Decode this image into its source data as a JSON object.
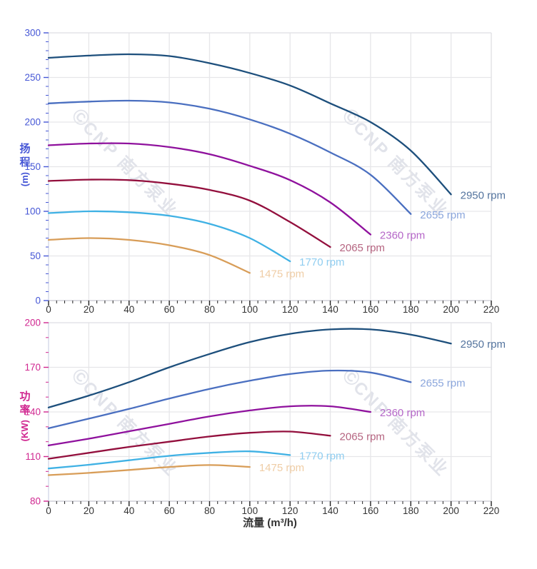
{
  "watermark": {
    "logo": "©",
    "text": "CNP 南方泵业"
  },
  "axes": {
    "head": {
      "title": "扬程",
      "unit": "(m)",
      "color": "#4657d6"
    },
    "power": {
      "title": "功率",
      "unit": "(KW)",
      "color": "#d02790"
    },
    "flow": {
      "title": "流量 (m³/h)",
      "color": "#333333"
    }
  },
  "chart_data": [
    {
      "type": "line",
      "name": "head-vs-flow",
      "title": "",
      "xlabel": "流量 (m³/h)",
      "ylabel": "扬程 (m)",
      "xlim": [
        0,
        220
      ],
      "ylim": [
        0,
        300
      ],
      "x_ticks": [
        0,
        20,
        40,
        60,
        80,
        100,
        120,
        140,
        160,
        180,
        200,
        220
      ],
      "y_ticks": [
        0,
        50,
        100,
        150,
        200,
        250,
        300
      ],
      "x_minor_step": 4,
      "y_minor_step": 10,
      "grid": true,
      "axis_color": "#4657d6",
      "legend_position": "labels-at-curve-ends",
      "series": [
        {
          "name": "2950 rpm",
          "color": "#1d4f7c",
          "label_color": "#54749e",
          "points": [
            [
              0,
              272
            ],
            [
              20,
              274.5
            ],
            [
              40,
              276
            ],
            [
              60,
              274
            ],
            [
              80,
              266
            ],
            [
              100,
              255
            ],
            [
              120,
              241
            ],
            [
              140,
              221
            ],
            [
              160,
              200
            ],
            [
              180,
              168
            ],
            [
              200,
              119
            ]
          ]
        },
        {
          "name": "2655 rpm",
          "color": "#4a6fc0",
          "label_color": "#8ba6dc",
          "points": [
            [
              0,
              221
            ],
            [
              20,
              223
            ],
            [
              40,
              224
            ],
            [
              60,
              222
            ],
            [
              80,
              215
            ],
            [
              100,
              203
            ],
            [
              120,
              187
            ],
            [
              140,
              166
            ],
            [
              160,
              141
            ],
            [
              180,
              97
            ]
          ]
        },
        {
          "name": "2360 rpm",
          "color": "#8f119d",
          "label_color": "#b567c8",
          "points": [
            [
              0,
              174
            ],
            [
              20,
              176
            ],
            [
              40,
              176
            ],
            [
              60,
              172
            ],
            [
              80,
              164
            ],
            [
              100,
              151
            ],
            [
              120,
              135
            ],
            [
              140,
              110
            ],
            [
              160,
              74
            ]
          ]
        },
        {
          "name": "2065 rpm",
          "color": "#930f3d",
          "label_color": "#b56480",
          "points": [
            [
              0,
              134
            ],
            [
              20,
              135.5
            ],
            [
              40,
              135
            ],
            [
              60,
              131
            ],
            [
              80,
              124
            ],
            [
              100,
              112
            ],
            [
              120,
              88
            ],
            [
              140,
              60
            ]
          ]
        },
        {
          "name": "1770 rpm",
          "color": "#3fb1e4",
          "label_color": "#8fcdf0",
          "points": [
            [
              0,
              98
            ],
            [
              20,
              100
            ],
            [
              40,
              99
            ],
            [
              60,
              95
            ],
            [
              80,
              86
            ],
            [
              100,
              70
            ],
            [
              120,
              44
            ]
          ]
        },
        {
          "name": "1475 rpm",
          "color": "#d89d58",
          "label_color": "#efcda6",
          "points": [
            [
              0,
              68
            ],
            [
              20,
              70
            ],
            [
              40,
              68
            ],
            [
              60,
              62
            ],
            [
              80,
              51
            ],
            [
              100,
              31
            ]
          ]
        }
      ]
    },
    {
      "type": "line",
      "name": "power-vs-flow",
      "title": "",
      "xlabel": "流量 (m³/h)",
      "ylabel": "功率 (KW)",
      "xlim": [
        0,
        220
      ],
      "ylim": [
        80,
        200
      ],
      "x_ticks": [
        0,
        20,
        40,
        60,
        80,
        100,
        120,
        140,
        160,
        180,
        200,
        220
      ],
      "y_ticks": [
        80,
        110,
        140,
        170,
        200
      ],
      "x_minor_step": 4,
      "y_minor_step": 10,
      "grid": true,
      "axis_color": "#d02790",
      "legend_position": "labels-at-curve-ends",
      "series": [
        {
          "name": "2950 rpm",
          "color": "#1d4f7c",
          "label_color": "#54749e",
          "points": [
            [
              0,
              143
            ],
            [
              20,
              151
            ],
            [
              40,
              160
            ],
            [
              60,
              170
            ],
            [
              80,
              179
            ],
            [
              100,
              187
            ],
            [
              120,
              192.5
            ],
            [
              140,
              195.5
            ],
            [
              160,
              195.5
            ],
            [
              180,
              192
            ],
            [
              200,
              186
            ]
          ]
        },
        {
          "name": "2655 rpm",
          "color": "#4a6fc0",
          "label_color": "#8ba6dc",
          "points": [
            [
              0,
              129
            ],
            [
              20,
              135.5
            ],
            [
              40,
              142
            ],
            [
              60,
              149
            ],
            [
              80,
              155.5
            ],
            [
              100,
              161
            ],
            [
              120,
              165.5
            ],
            [
              140,
              167.8
            ],
            [
              160,
              166.5
            ],
            [
              180,
              160
            ]
          ]
        },
        {
          "name": "2360 rpm",
          "color": "#8f119d",
          "label_color": "#b567c8",
          "points": [
            [
              0,
              117.5
            ],
            [
              20,
              122
            ],
            [
              40,
              127
            ],
            [
              60,
              132
            ],
            [
              80,
              137
            ],
            [
              100,
              141
            ],
            [
              120,
              143.8
            ],
            [
              140,
              143.8
            ],
            [
              160,
              140
            ]
          ]
        },
        {
          "name": "2065 rpm",
          "color": "#930f3d",
          "label_color": "#b56480",
          "points": [
            [
              0,
              108.5
            ],
            [
              20,
              112.5
            ],
            [
              40,
              116.5
            ],
            [
              60,
              120
            ],
            [
              80,
              123.5
            ],
            [
              100,
              126
            ],
            [
              120,
              126.8
            ],
            [
              140,
              124
            ]
          ]
        },
        {
          "name": "1770 rpm",
          "color": "#3fb1e4",
          "label_color": "#8fcdf0",
          "points": [
            [
              0,
              102
            ],
            [
              20,
              104.5
            ],
            [
              40,
              107.5
            ],
            [
              60,
              110.5
            ],
            [
              80,
              112.5
            ],
            [
              100,
              113.5
            ],
            [
              120,
              111
            ]
          ]
        },
        {
          "name": "1475 rpm",
          "color": "#d89d58",
          "label_color": "#efcda6",
          "points": [
            [
              0,
              97.5
            ],
            [
              20,
              99
            ],
            [
              40,
              101
            ],
            [
              60,
              103
            ],
            [
              80,
              104.3
            ],
            [
              100,
              103
            ]
          ]
        }
      ]
    }
  ]
}
